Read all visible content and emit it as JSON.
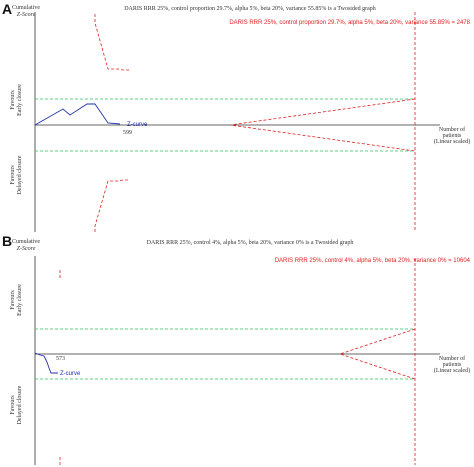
{
  "panels": [
    {
      "letter": "A",
      "title": "DARIS RRR 25%, control proportion 29.7%, alpha 5%, beta 20%, variance 55.85% is a Twosided graph",
      "boundary_label": "DARIS RRR 25%, control proportion 29.7%, alpha 5%, beta 20%, variance 55.85% = 2478",
      "y_axis_label": [
        "Cumulative",
        "Z-Score"
      ],
      "upper_label": [
        "Favours",
        "Early closure"
      ],
      "lower_label": [
        "Favours",
        "Delayed closure"
      ],
      "curve_label": "Z-curve",
      "patients_label": "599",
      "x_axis_label": [
        "Number of",
        "patients",
        "(Linear scaled)"
      ]
    },
    {
      "letter": "B",
      "title": "DARIS RRR 25%, control 4%, alpha 5%, beta 20%, variance 0% is a Twosided graph",
      "boundary_label": "DARIS RRR 25%, control 4%, alpha 5%, beta 20%, variance 0% = 10604",
      "y_axis_label": [
        "Cumulative",
        "Z-Score"
      ],
      "upper_label": [
        "Favours",
        "Early closure"
      ],
      "lower_label": [
        "Favours",
        "Delayed closure"
      ],
      "curve_label": "Z-curve",
      "patients_label": "573",
      "x_axis_label": [
        "Number of",
        "patients",
        "(Linear scaled)"
      ]
    }
  ]
}
